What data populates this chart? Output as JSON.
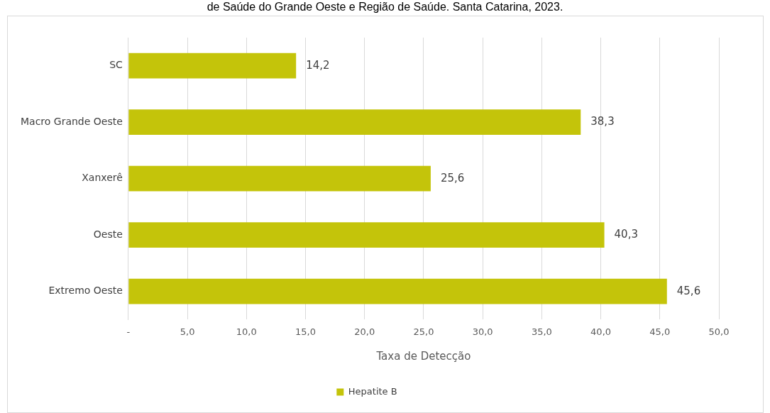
{
  "chart_data": {
    "type": "bar",
    "orientation": "horizontal",
    "title": "de Saúde do Grande Oeste e Região de Saúde. Santa Catarina, 2023.",
    "xlabel": "Taxa de Detecção",
    "categories": [
      "SC",
      "Macro Grande Oeste",
      "Xanxerê",
      "Oeste",
      "Extremo Oeste"
    ],
    "series": [
      {
        "name": "Hepatite B",
        "color": "#c4c40a",
        "values": [
          14.2,
          38.3,
          25.6,
          40.3,
          45.6
        ],
        "value_labels": [
          "14,2",
          "38,3",
          "25,6",
          "40,3",
          "45,6"
        ]
      }
    ],
    "xlim": [
      0,
      50
    ],
    "xticks": [
      {
        "value": 0,
        "label": "-"
      },
      {
        "value": 5,
        "label": "5,0"
      },
      {
        "value": 10,
        "label": "10,0"
      },
      {
        "value": 15,
        "label": "15,0"
      },
      {
        "value": 20,
        "label": "20,0"
      },
      {
        "value": 25,
        "label": "25,0"
      },
      {
        "value": 30,
        "label": "30,0"
      },
      {
        "value": 35,
        "label": "35,0"
      },
      {
        "value": 40,
        "label": "40,0"
      },
      {
        "value": 45,
        "label": "45,0"
      },
      {
        "value": 50,
        "label": "50,0"
      }
    ],
    "grid": "x",
    "legend": "bottom"
  }
}
